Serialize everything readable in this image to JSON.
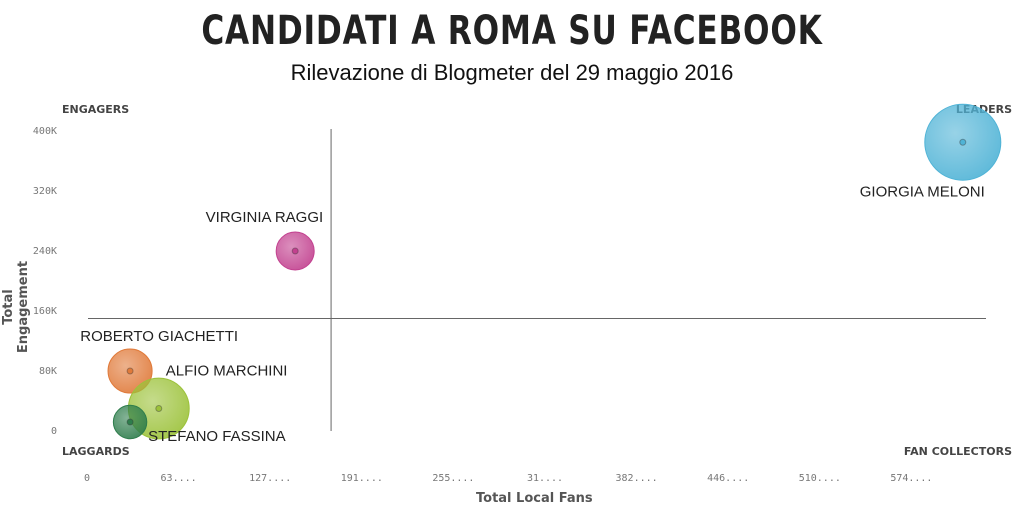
{
  "header": {
    "title": "CANDIDATI A ROMA SU FACEBOOK",
    "subtitle": "Rilevazione di Blogmeter del 29 maggio 2016"
  },
  "quadrants": {
    "top_left": "ENGAGERS",
    "top_right": "LEADERS",
    "bottom_left": "LAGGARDS",
    "bottom_right": "FAN COLLECTORS"
  },
  "chart_data": {
    "type": "scatter",
    "xlabel": "Total Local Fans",
    "ylabel": "Total Engagement",
    "xlim": [
      0,
      638000
    ],
    "ylim": [
      0,
      400000
    ],
    "x_ticks": [
      {
        "value": 0,
        "label": "0"
      },
      {
        "value": 63800,
        "label": "63...."
      },
      {
        "value": 127600,
        "label": "127...."
      },
      {
        "value": 191400,
        "label": "191...."
      },
      {
        "value": 255200,
        "label": "255...."
      },
      {
        "value": 319000,
        "label": "31...."
      },
      {
        "value": 382800,
        "label": "382...."
      },
      {
        "value": 446600,
        "label": "446...."
      },
      {
        "value": 510400,
        "label": "510...."
      },
      {
        "value": 574200,
        "label": "574...."
      }
    ],
    "y_ticks": [
      {
        "value": 0,
        "label": "0"
      },
      {
        "value": 80000,
        "label": "80K"
      },
      {
        "value": 160000,
        "label": "160K"
      },
      {
        "value": 240000,
        "label": "240K"
      },
      {
        "value": 320000,
        "label": "320K"
      },
      {
        "value": 400000,
        "label": "400K"
      }
    ],
    "divider": {
      "x": 170000,
      "y": 150000
    },
    "points": [
      {
        "label": "GIORGIA MELONI",
        "x": 610000,
        "y": 385000,
        "size": 1.0,
        "color": "#4fb3d6",
        "label_pos": "below-left"
      },
      {
        "label": "VIRGINIA RAGGI",
        "x": 145000,
        "y": 240000,
        "size": 0.5,
        "color": "#c2418f",
        "label_pos": "above-left"
      },
      {
        "label": "ROBERTO GIACHETTI",
        "x": 30000,
        "y": 80000,
        "size": 0.58,
        "color": "#e07a3a",
        "label_pos": "above-left"
      },
      {
        "label": "ALFIO MARCHINI",
        "x": 50000,
        "y": 30000,
        "size": 0.8,
        "color": "#9cc23a",
        "label_pos": "upper-right"
      },
      {
        "label": "STEFANO FASSINA",
        "x": 30000,
        "y": 12000,
        "size": 0.44,
        "color": "#2e7d4c",
        "label_pos": "right"
      }
    ]
  }
}
